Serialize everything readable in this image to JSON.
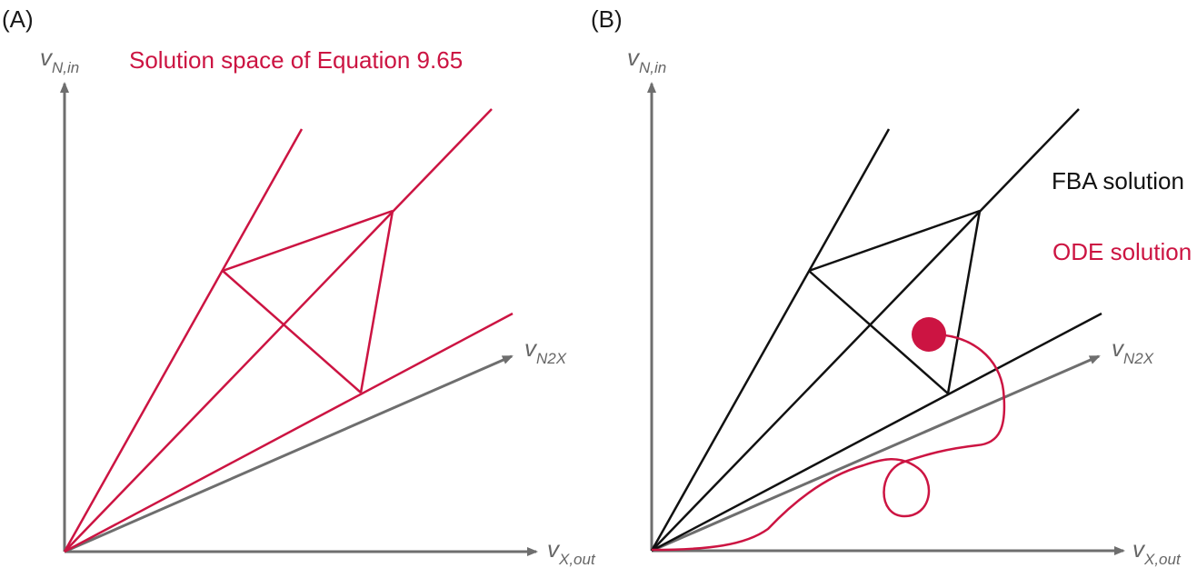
{
  "panel_a": {
    "label": "(A)",
    "title": "Solution space of Equation 9.65",
    "axes": {
      "y": {
        "main": "v",
        "sub": "N,in"
      },
      "x": {
        "main": "v",
        "sub": "X,out"
      },
      "diag": {
        "main": "v",
        "sub": "N2X"
      }
    }
  },
  "panel_b": {
    "label": "(B)",
    "legend": {
      "fba": "FBA solution",
      "ode": "ODE solution"
    },
    "axes": {
      "y": {
        "main": "v",
        "sub": "N,in"
      },
      "x": {
        "main": "v",
        "sub": "X,out"
      },
      "diag": {
        "main": "v",
        "sub": "N2X"
      }
    }
  },
  "colors": {
    "axis": "#6e6e6e",
    "solution_space": "#cc1442",
    "fba": "#111111",
    "ode": "#cc1442",
    "text": "#1a1a1a"
  }
}
